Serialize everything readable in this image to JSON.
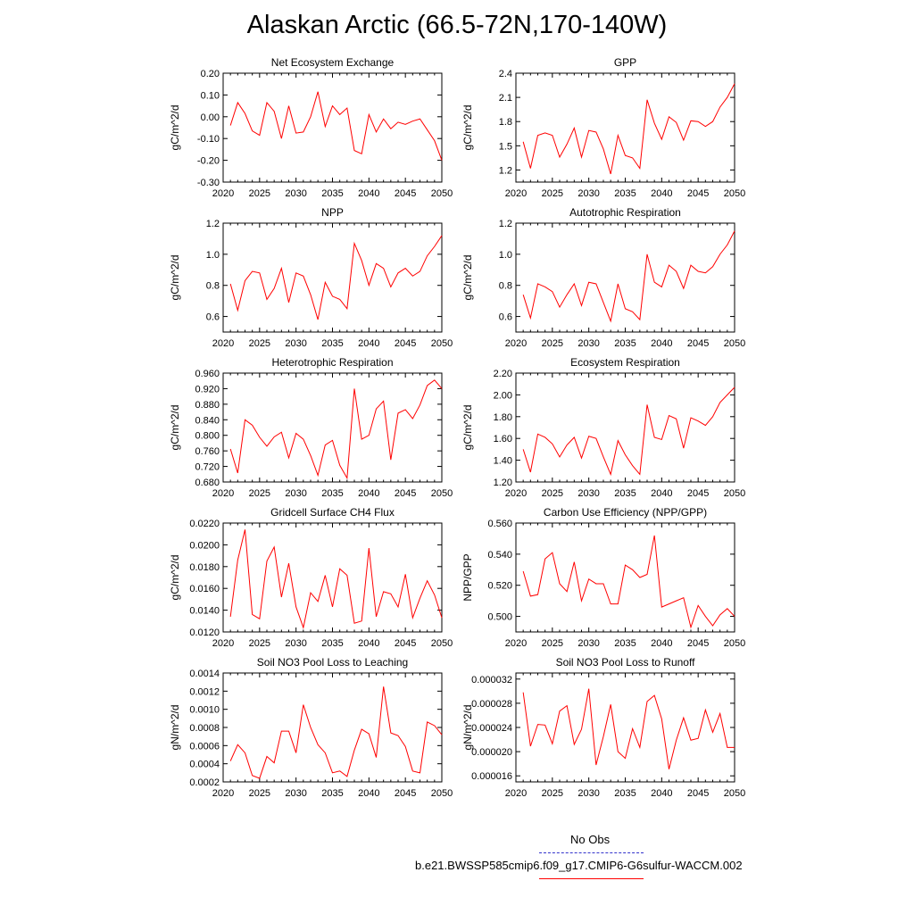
{
  "title": "Alaskan Arctic (66.5-72N,170-140W)",
  "legend": {
    "obs_label": "No Obs",
    "obs_color": "#3333cc",
    "case_label": "b.e21.BWSSP585cmip6.f09_g17.CMIP6-G6sulfur-WACCM.002",
    "case_color": "#ff0000"
  },
  "chart_data": [
    {
      "type": "line",
      "title": "Net Ecosystem Exchange",
      "ylabel": "gC/m^2/d",
      "xlim": [
        2020,
        2050
      ],
      "ylim": [
        -0.3,
        0.2
      ],
      "xticks": [
        "2020",
        "2025",
        "2030",
        "2035",
        "2040",
        "2045",
        "2050"
      ],
      "yticks": [
        "-0.30",
        "-0.20",
        "-0.10",
        "0.00",
        "0.10",
        "0.20"
      ],
      "x": [
        2021,
        2022,
        2023,
        2024,
        2025,
        2026,
        2027,
        2028,
        2029,
        2030,
        2031,
        2032,
        2033,
        2034,
        2035,
        2036,
        2037,
        2038,
        2039,
        2040,
        2041,
        2042,
        2043,
        2044,
        2045,
        2046,
        2047,
        2048,
        2049,
        2050
      ],
      "series": [
        {
          "values": [
            -0.04,
            0.065,
            0.015,
            -0.065,
            -0.085,
            0.065,
            0.025,
            -0.1,
            0.05,
            -0.075,
            -0.07,
            0.0,
            0.115,
            -0.045,
            0.05,
            0.01,
            0.04,
            -0.155,
            -0.17,
            0.01,
            -0.07,
            -0.01,
            -0.055,
            -0.025,
            -0.035,
            -0.02,
            -0.01,
            -0.06,
            -0.11,
            -0.2
          ],
          "color": "#ff0000"
        }
      ]
    },
    {
      "type": "line",
      "title": "GPP",
      "ylabel": "gC/m^2/d",
      "xlim": [
        2020,
        2050
      ],
      "ylim": [
        1.05,
        2.4
      ],
      "xticks": [
        "2020",
        "2025",
        "2030",
        "2035",
        "2040",
        "2045",
        "2050"
      ],
      "yticks": [
        "1.2",
        "1.5",
        "1.8",
        "2.1",
        "2.4"
      ],
      "x": [
        2021,
        2022,
        2023,
        2024,
        2025,
        2026,
        2027,
        2028,
        2029,
        2030,
        2031,
        2032,
        2033,
        2034,
        2035,
        2036,
        2037,
        2038,
        2039,
        2040,
        2041,
        2042,
        2043,
        2044,
        2045,
        2046,
        2047,
        2048,
        2049,
        2050
      ],
      "series": [
        {
          "values": [
            1.55,
            1.22,
            1.63,
            1.66,
            1.63,
            1.36,
            1.52,
            1.72,
            1.36,
            1.69,
            1.67,
            1.46,
            1.15,
            1.63,
            1.38,
            1.35,
            1.22,
            2.07,
            1.78,
            1.58,
            1.86,
            1.79,
            1.57,
            1.81,
            1.8,
            1.74,
            1.8,
            1.98,
            2.1,
            2.27
          ],
          "color": "#ff0000"
        }
      ]
    },
    {
      "type": "line",
      "title": "NPP",
      "ylabel": "gC/m^2/d",
      "xlim": [
        2020,
        2050
      ],
      "ylim": [
        0.5,
        1.2
      ],
      "xticks": [
        "2020",
        "2025",
        "2030",
        "2035",
        "2040",
        "2045",
        "2050"
      ],
      "yticks": [
        "0.6",
        "0.8",
        "1.0",
        "1.2"
      ],
      "x": [
        2021,
        2022,
        2023,
        2024,
        2025,
        2026,
        2027,
        2028,
        2029,
        2030,
        2031,
        2032,
        2033,
        2034,
        2035,
        2036,
        2037,
        2038,
        2039,
        2040,
        2041,
        2042,
        2043,
        2044,
        2045,
        2046,
        2047,
        2048,
        2049,
        2050
      ],
      "series": [
        {
          "values": [
            0.81,
            0.64,
            0.83,
            0.89,
            0.88,
            0.71,
            0.78,
            0.91,
            0.69,
            0.88,
            0.86,
            0.74,
            0.58,
            0.82,
            0.73,
            0.71,
            0.65,
            1.07,
            0.96,
            0.8,
            0.94,
            0.91,
            0.79,
            0.88,
            0.91,
            0.86,
            0.89,
            0.99,
            1.05,
            1.12
          ],
          "color": "#ff0000"
        }
      ]
    },
    {
      "type": "line",
      "title": "Autotrophic Respiration",
      "ylabel": "gC/m^2/d",
      "xlim": [
        2020,
        2050
      ],
      "ylim": [
        0.5,
        1.2
      ],
      "xticks": [
        "2020",
        "2025",
        "2030",
        "2035",
        "2040",
        "2045",
        "2050"
      ],
      "yticks": [
        "0.6",
        "0.8",
        "1.0",
        "1.2"
      ],
      "x": [
        2021,
        2022,
        2023,
        2024,
        2025,
        2026,
        2027,
        2028,
        2029,
        2030,
        2031,
        2032,
        2033,
        2034,
        2035,
        2036,
        2037,
        2038,
        2039,
        2040,
        2041,
        2042,
        2043,
        2044,
        2045,
        2046,
        2047,
        2048,
        2049,
        2050
      ],
      "series": [
        {
          "values": [
            0.74,
            0.59,
            0.81,
            0.79,
            0.76,
            0.66,
            0.74,
            0.81,
            0.67,
            0.82,
            0.81,
            0.69,
            0.57,
            0.81,
            0.65,
            0.63,
            0.58,
            1.0,
            0.82,
            0.79,
            0.93,
            0.89,
            0.78,
            0.93,
            0.89,
            0.88,
            0.92,
            1.0,
            1.06,
            1.15
          ],
          "color": "#ff0000"
        }
      ]
    },
    {
      "type": "line",
      "title": "Heterotrophic Respiration",
      "ylabel": "gC/m^2/d",
      "xlim": [
        2020,
        2050
      ],
      "ylim": [
        0.68,
        0.96
      ],
      "xticks": [
        "2020",
        "2025",
        "2030",
        "2035",
        "2040",
        "2045",
        "2050"
      ],
      "yticks": [
        "0.680",
        "0.720",
        "0.760",
        "0.800",
        "0.840",
        "0.880",
        "0.920",
        "0.960"
      ],
      "x": [
        2021,
        2022,
        2023,
        2024,
        2025,
        2026,
        2027,
        2028,
        2029,
        2030,
        2031,
        2032,
        2033,
        2034,
        2035,
        2036,
        2037,
        2038,
        2039,
        2040,
        2041,
        2042,
        2043,
        2044,
        2045,
        2046,
        2047,
        2048,
        2049,
        2050
      ],
      "series": [
        {
          "values": [
            0.765,
            0.703,
            0.84,
            0.826,
            0.795,
            0.772,
            0.796,
            0.808,
            0.742,
            0.805,
            0.79,
            0.748,
            0.697,
            0.775,
            0.787,
            0.723,
            0.69,
            0.92,
            0.79,
            0.8,
            0.868,
            0.888,
            0.737,
            0.857,
            0.866,
            0.843,
            0.878,
            0.928,
            0.942,
            0.92
          ],
          "color": "#ff0000"
        }
      ]
    },
    {
      "type": "line",
      "title": "Ecosystem Respiration",
      "ylabel": "gC/m^2/d",
      "xlim": [
        2020,
        2050
      ],
      "ylim": [
        1.2,
        2.2
      ],
      "xticks": [
        "2020",
        "2025",
        "2030",
        "2035",
        "2040",
        "2045",
        "2050"
      ],
      "yticks": [
        "1.20",
        "1.40",
        "1.60",
        "1.80",
        "2.00",
        "2.20"
      ],
      "x": [
        2021,
        2022,
        2023,
        2024,
        2025,
        2026,
        2027,
        2028,
        2029,
        2030,
        2031,
        2032,
        2033,
        2034,
        2035,
        2036,
        2037,
        2038,
        2039,
        2040,
        2041,
        2042,
        2043,
        2044,
        2045,
        2046,
        2047,
        2048,
        2049,
        2050
      ],
      "series": [
        {
          "values": [
            1.5,
            1.29,
            1.64,
            1.61,
            1.55,
            1.43,
            1.54,
            1.61,
            1.42,
            1.62,
            1.6,
            1.43,
            1.27,
            1.58,
            1.45,
            1.35,
            1.27,
            1.91,
            1.61,
            1.59,
            1.81,
            1.78,
            1.51,
            1.79,
            1.76,
            1.72,
            1.8,
            1.93,
            2.0,
            2.07
          ],
          "color": "#ff0000"
        }
      ]
    },
    {
      "type": "line",
      "title": "Gridcell Surface CH4 Flux",
      "ylabel": "gC/m^2/d",
      "xlim": [
        2020,
        2050
      ],
      "ylim": [
        0.012,
        0.022
      ],
      "xticks": [
        "2020",
        "2025",
        "2030",
        "2035",
        "2040",
        "2045",
        "2050"
      ],
      "yticks": [
        "0.0120",
        "0.0140",
        "0.0160",
        "0.0180",
        "0.0200",
        "0.0220"
      ],
      "x": [
        2021,
        2022,
        2023,
        2024,
        2025,
        2026,
        2027,
        2028,
        2029,
        2030,
        2031,
        2032,
        2033,
        2034,
        2035,
        2036,
        2037,
        2038,
        2039,
        2040,
        2041,
        2042,
        2043,
        2044,
        2045,
        2046,
        2047,
        2048,
        2049,
        2050
      ],
      "series": [
        {
          "values": [
            0.0134,
            0.0186,
            0.0214,
            0.0136,
            0.0132,
            0.0185,
            0.0198,
            0.0152,
            0.0183,
            0.0143,
            0.0124,
            0.0156,
            0.0148,
            0.0172,
            0.0143,
            0.0178,
            0.0172,
            0.0128,
            0.013,
            0.0197,
            0.0134,
            0.0157,
            0.0155,
            0.0143,
            0.0173,
            0.0133,
            0.0151,
            0.0167,
            0.0154,
            0.0133
          ],
          "color": "#ff0000"
        }
      ]
    },
    {
      "type": "line",
      "title": "Carbon Use Efficiency (NPP/GPP)",
      "ylabel": "NPP/GPP",
      "xlim": [
        2020,
        2050
      ],
      "ylim": [
        0.49,
        0.56
      ],
      "xticks": [
        "2020",
        "2025",
        "2030",
        "2035",
        "2040",
        "2045",
        "2050"
      ],
      "yticks": [
        "0.500",
        "0.520",
        "0.540",
        "0.560"
      ],
      "x": [
        2021,
        2022,
        2023,
        2024,
        2025,
        2026,
        2027,
        2028,
        2029,
        2030,
        2031,
        2032,
        2033,
        2034,
        2035,
        2036,
        2037,
        2038,
        2039,
        2040,
        2041,
        2042,
        2043,
        2044,
        2045,
        2046,
        2047,
        2048,
        2049,
        2050
      ],
      "series": [
        {
          "values": [
            0.529,
            0.513,
            0.514,
            0.537,
            0.541,
            0.521,
            0.516,
            0.535,
            0.51,
            0.524,
            0.521,
            0.521,
            0.508,
            0.508,
            0.533,
            0.53,
            0.525,
            0.527,
            0.552,
            0.506,
            0.508,
            0.51,
            0.512,
            0.493,
            0.507,
            0.5,
            0.494,
            0.501,
            0.505,
            0.5
          ],
          "color": "#ff0000"
        }
      ]
    },
    {
      "type": "line",
      "title": "Soil NO3 Pool Loss to Leaching",
      "ylabel": "gN/m^2/d",
      "xlim": [
        2020,
        2050
      ],
      "ylim": [
        0.0002,
        0.0014
      ],
      "xticks": [
        "2020",
        "2025",
        "2030",
        "2035",
        "2040",
        "2045",
        "2050"
      ],
      "yticks": [
        "0.0002",
        "0.0004",
        "0.0006",
        "0.0008",
        "0.0010",
        "0.0012",
        "0.0014"
      ],
      "x": [
        2021,
        2022,
        2023,
        2024,
        2025,
        2026,
        2027,
        2028,
        2029,
        2030,
        2031,
        2032,
        2033,
        2034,
        2035,
        2036,
        2037,
        2038,
        2039,
        2040,
        2041,
        2042,
        2043,
        2044,
        2045,
        2046,
        2047,
        2048,
        2049,
        2050
      ],
      "series": [
        {
          "values": [
            0.00043,
            0.00061,
            0.00052,
            0.00027,
            0.00024,
            0.00048,
            0.00041,
            0.00076,
            0.00076,
            0.00052,
            0.00105,
            0.0008,
            0.00061,
            0.00052,
            0.0003,
            0.00032,
            0.00026,
            0.00055,
            0.00078,
            0.00073,
            0.00047,
            0.00125,
            0.00074,
            0.00071,
            0.00059,
            0.00032,
            0.0003,
            0.00086,
            0.00082,
            0.00072
          ],
          "color": "#ff0000"
        }
      ]
    },
    {
      "type": "line",
      "title": "Soil NO3 Pool Loss to Runoff",
      "ylabel": "gN/m^2/d",
      "xlim": [
        2020,
        2050
      ],
      "ylim": [
        1.5e-05,
        3.3e-05
      ],
      "xticks": [
        "2020",
        "2025",
        "2030",
        "2035",
        "2040",
        "2045",
        "2050"
      ],
      "yticks": [
        "0.000016",
        "0.000020",
        "0.000024",
        "0.000028",
        "0.000032"
      ],
      "x": [
        2021,
        2022,
        2023,
        2024,
        2025,
        2026,
        2027,
        2028,
        2029,
        2030,
        2031,
        2032,
        2033,
        2034,
        2035,
        2036,
        2037,
        2038,
        2039,
        2040,
        2041,
        2042,
        2043,
        2044,
        2045,
        2046,
        2047,
        2048,
        2049,
        2050
      ],
      "series": [
        {
          "values": [
            2.98e-05,
            2.09e-05,
            2.45e-05,
            2.44e-05,
            2.13e-05,
            2.67e-05,
            2.76e-05,
            2.12e-05,
            2.37e-05,
            3.04e-05,
            1.78e-05,
            2.25e-05,
            2.78e-05,
            2e-05,
            1.89e-05,
            2.38e-05,
            2.07e-05,
            2.83e-05,
            2.93e-05,
            2.54e-05,
            1.71e-05,
            2.19e-05,
            2.56e-05,
            2.19e-05,
            2.22e-05,
            2.69e-05,
            2.32e-05,
            2.63e-05,
            2.07e-05,
            2.07e-05
          ],
          "color": "#ff0000"
        }
      ]
    }
  ]
}
